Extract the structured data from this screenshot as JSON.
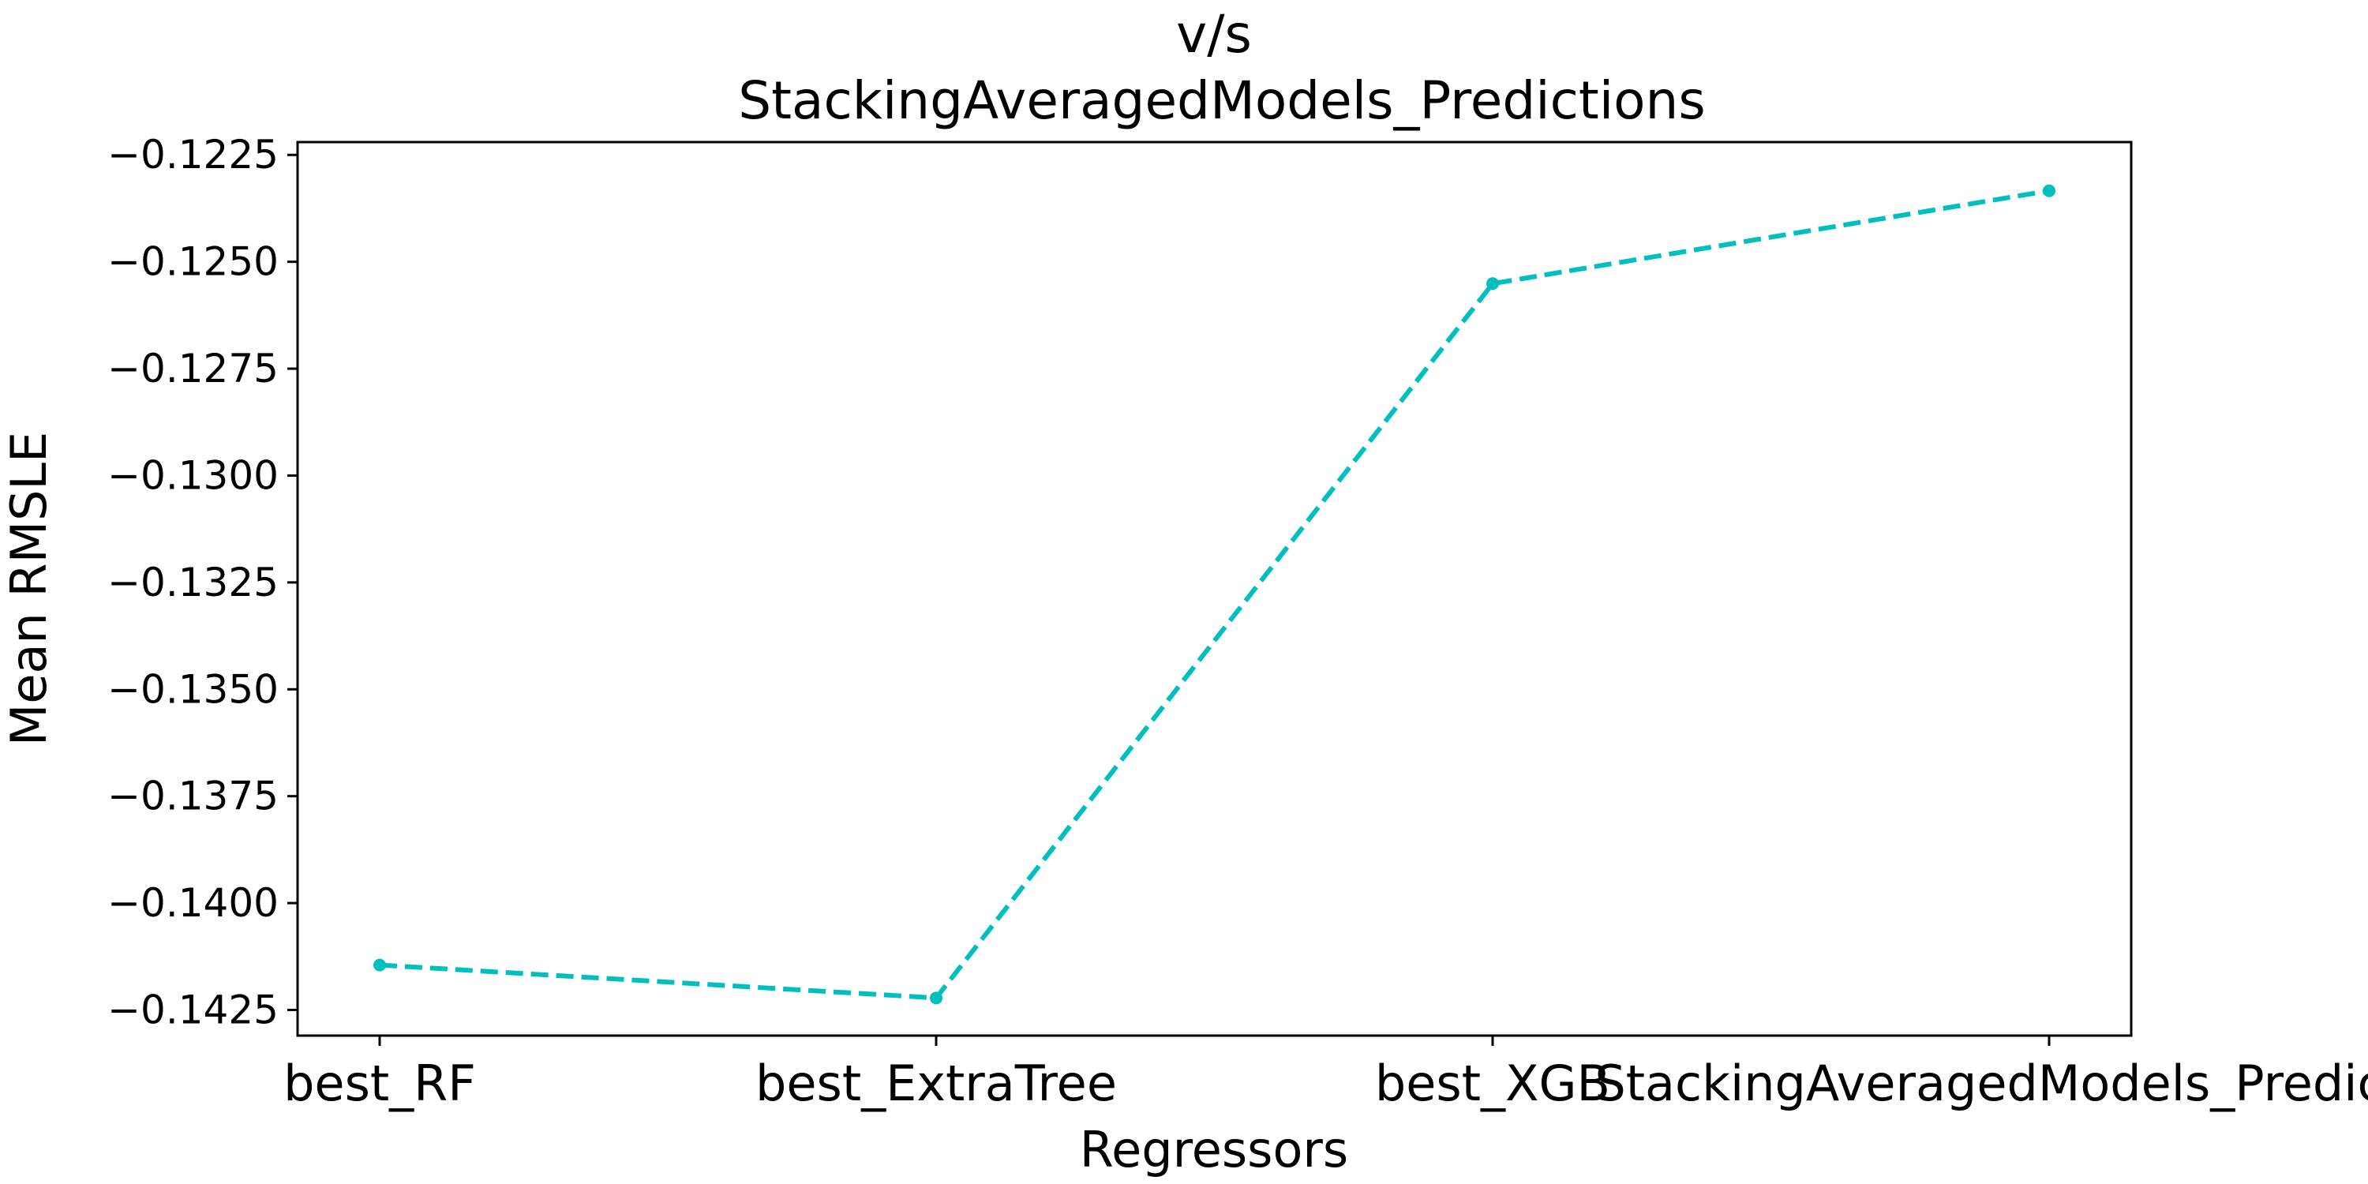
{
  "chart_data": {
    "type": "line",
    "title": [
      "v/s",
      "StackingAveragedModels_Predictions"
    ],
    "xlabel": "Regressors",
    "ylabel": "Mean RMSLE",
    "categories": [
      "best_RF",
      "best_ExtraTree",
      "best_XGB",
      "StackingAveragedModels_Predictions"
    ],
    "series": [
      {
        "values": [
          -0.14145,
          -0.14222,
          -0.12551,
          -0.12334
        ],
        "color": "#00bfbf",
        "line_style": "dashed",
        "marker": "circle"
      }
    ],
    "ylim": [
      -0.1431,
      -0.1222
    ],
    "yticks": [
      -0.1425,
      -0.14,
      -0.1375,
      -0.135,
      -0.1325,
      -0.13,
      -0.1275,
      -0.125,
      -0.1225
    ],
    "ytick_labels": [
      "−0.1425",
      "−0.1400",
      "−0.1375",
      "−0.1350",
      "−0.1325",
      "−0.1300",
      "−0.1275",
      "−0.1250",
      "−0.1225"
    ],
    "grid": false,
    "legend": "none"
  }
}
